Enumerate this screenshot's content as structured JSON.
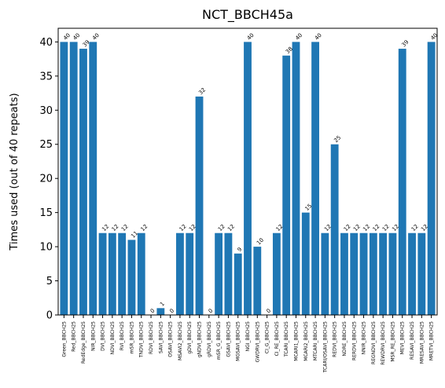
{
  "chart_data": {
    "type": "bar",
    "title": "NCT_BBCH45a",
    "xlabel": "",
    "ylabel": "Times used (out of 40 repeats)",
    "ylim": [
      0,
      42
    ],
    "yticks": [
      0,
      5,
      10,
      15,
      20,
      25,
      30,
      35,
      40
    ],
    "grid": false,
    "color": "#1f77b4",
    "categories": [
      "Green_BBCH25",
      "Red_BBCH25",
      "RedEdge_BBCH25",
      "NIR_BBCH25",
      "DVI_BBCH25",
      "NDVI_BBCH25",
      "RVI_BBCH25",
      "mSR_BBCH25",
      "TNDVI_BBCH25",
      "RDVI_BBCH25",
      "SAVI_BBCH25",
      "OSAVI_BBCH25",
      "MSAVI2_BBCH25",
      "gDVI_BBCH25",
      "gNDVI_BBCH25",
      "gRDVI_BBCH25",
      "mSR_G_BBCH25",
      "GSAVI_BBCH25",
      "MGSAVI_BBCH25",
      "NGI_BBCH25",
      "GWDRVI_BBCH25",
      "CI_G_BBCH25",
      "CI_RE_BBCH25",
      "TCARI_BBCH25",
      "MCARI1_BBCH25",
      "MCARI2_BBCH25",
      "MTCARI_BBCH25",
      "TCARI/OSAVI_BBCH25",
      "REDVI_BBCH25",
      "NDRE_BBCH25",
      "RERDVI_BBCH25",
      "NNIR_BBCH25",
      "REGNDVI_BBCH25",
      "REWDRVI_BBCH25",
      "MSR_RE_BBCH25",
      "MEVI_BBCH25",
      "RESAVI_BBCH25",
      "MRESAVI_BBCH25",
      "MRETVI_BBCH25"
    ],
    "values": [
      40,
      40,
      39,
      40,
      12,
      12,
      12,
      11,
      12,
      0,
      1,
      0,
      12,
      12,
      32,
      0,
      12,
      12,
      9,
      40,
      10,
      0,
      12,
      38,
      40,
      15,
      40,
      12,
      25,
      12,
      12,
      12,
      12,
      12,
      12,
      39,
      12,
      12,
      40
    ]
  }
}
